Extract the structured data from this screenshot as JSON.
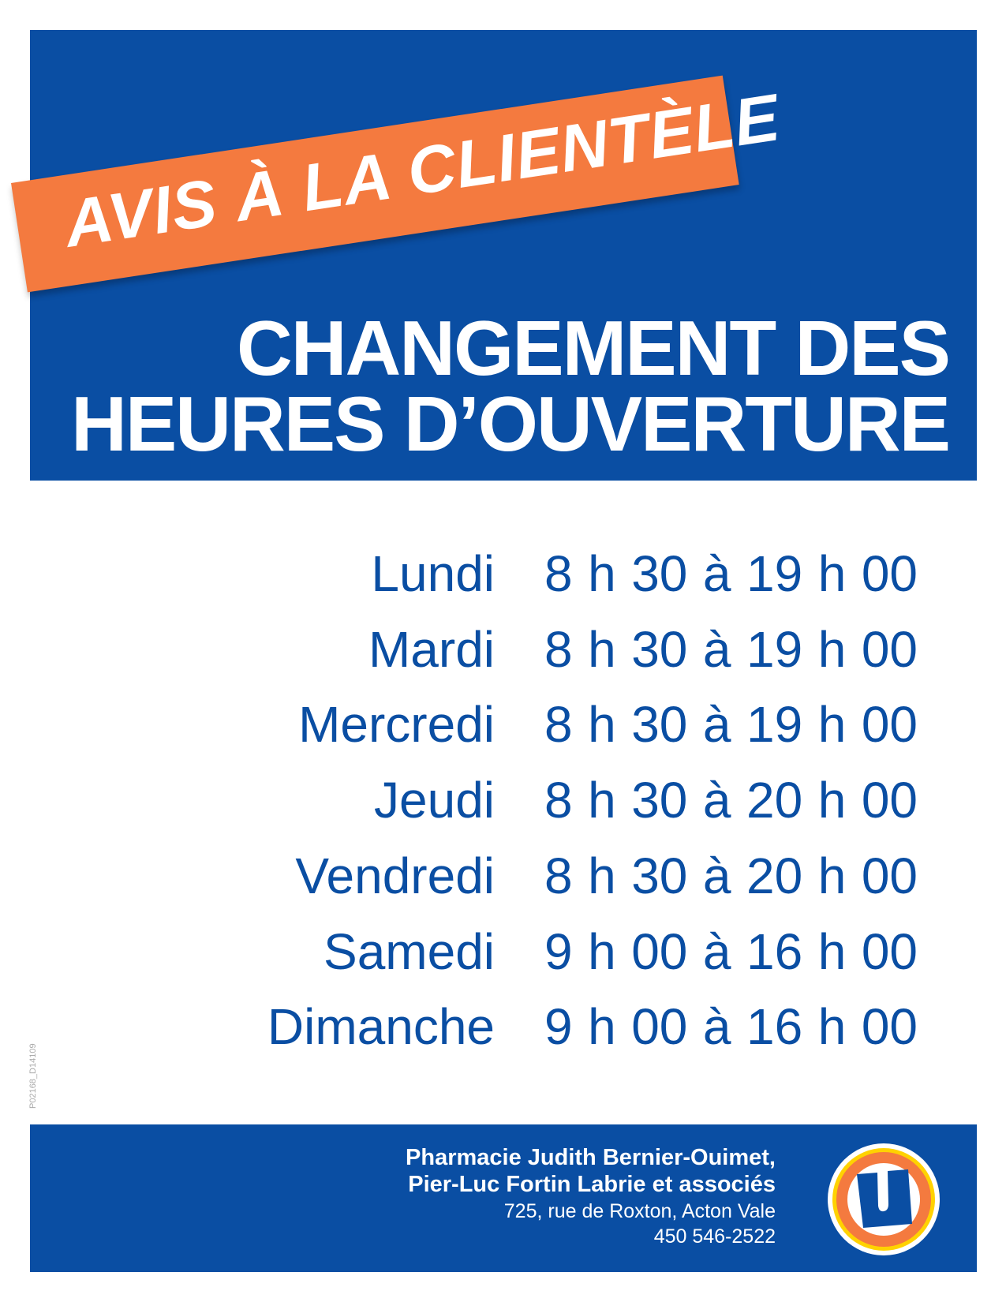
{
  "banner": {
    "text": "AVIS À LA CLIENTÈLE"
  },
  "title": {
    "line1": "CHANGEMENT DES",
    "line2": "HEURES D’OUVERTURE"
  },
  "schedule": [
    {
      "day": "Lundi",
      "hours": "8 h 30 à 19 h 00"
    },
    {
      "day": "Mardi",
      "hours": "8 h 30 à 19 h 00"
    },
    {
      "day": "Mercredi",
      "hours": "8 h 30 à 19 h 00"
    },
    {
      "day": "Jeudi",
      "hours": "8 h 30 à 20 h 00"
    },
    {
      "day": "Vendredi",
      "hours": "8 h 30 à 20 h 00"
    },
    {
      "day": "Samedi",
      "hours": "9 h 00 à 16 h 00"
    },
    {
      "day": "Dimanche",
      "hours": "9 h 00 à 16 h 00"
    }
  ],
  "doc_code": "P02168_D14109",
  "footer": {
    "name_line1": "Pharmacie Judith Bernier-Ouimet,",
    "name_line2": "Pier-Luc Fortin Labrie et associés",
    "address": "725, rue de Roxton, Acton Vale",
    "phone": "450 546-2522",
    "logo_letter": "U"
  },
  "colors": {
    "blue": "#0a4ea3",
    "orange": "#f47a3f",
    "yellow": "#ffd200"
  }
}
